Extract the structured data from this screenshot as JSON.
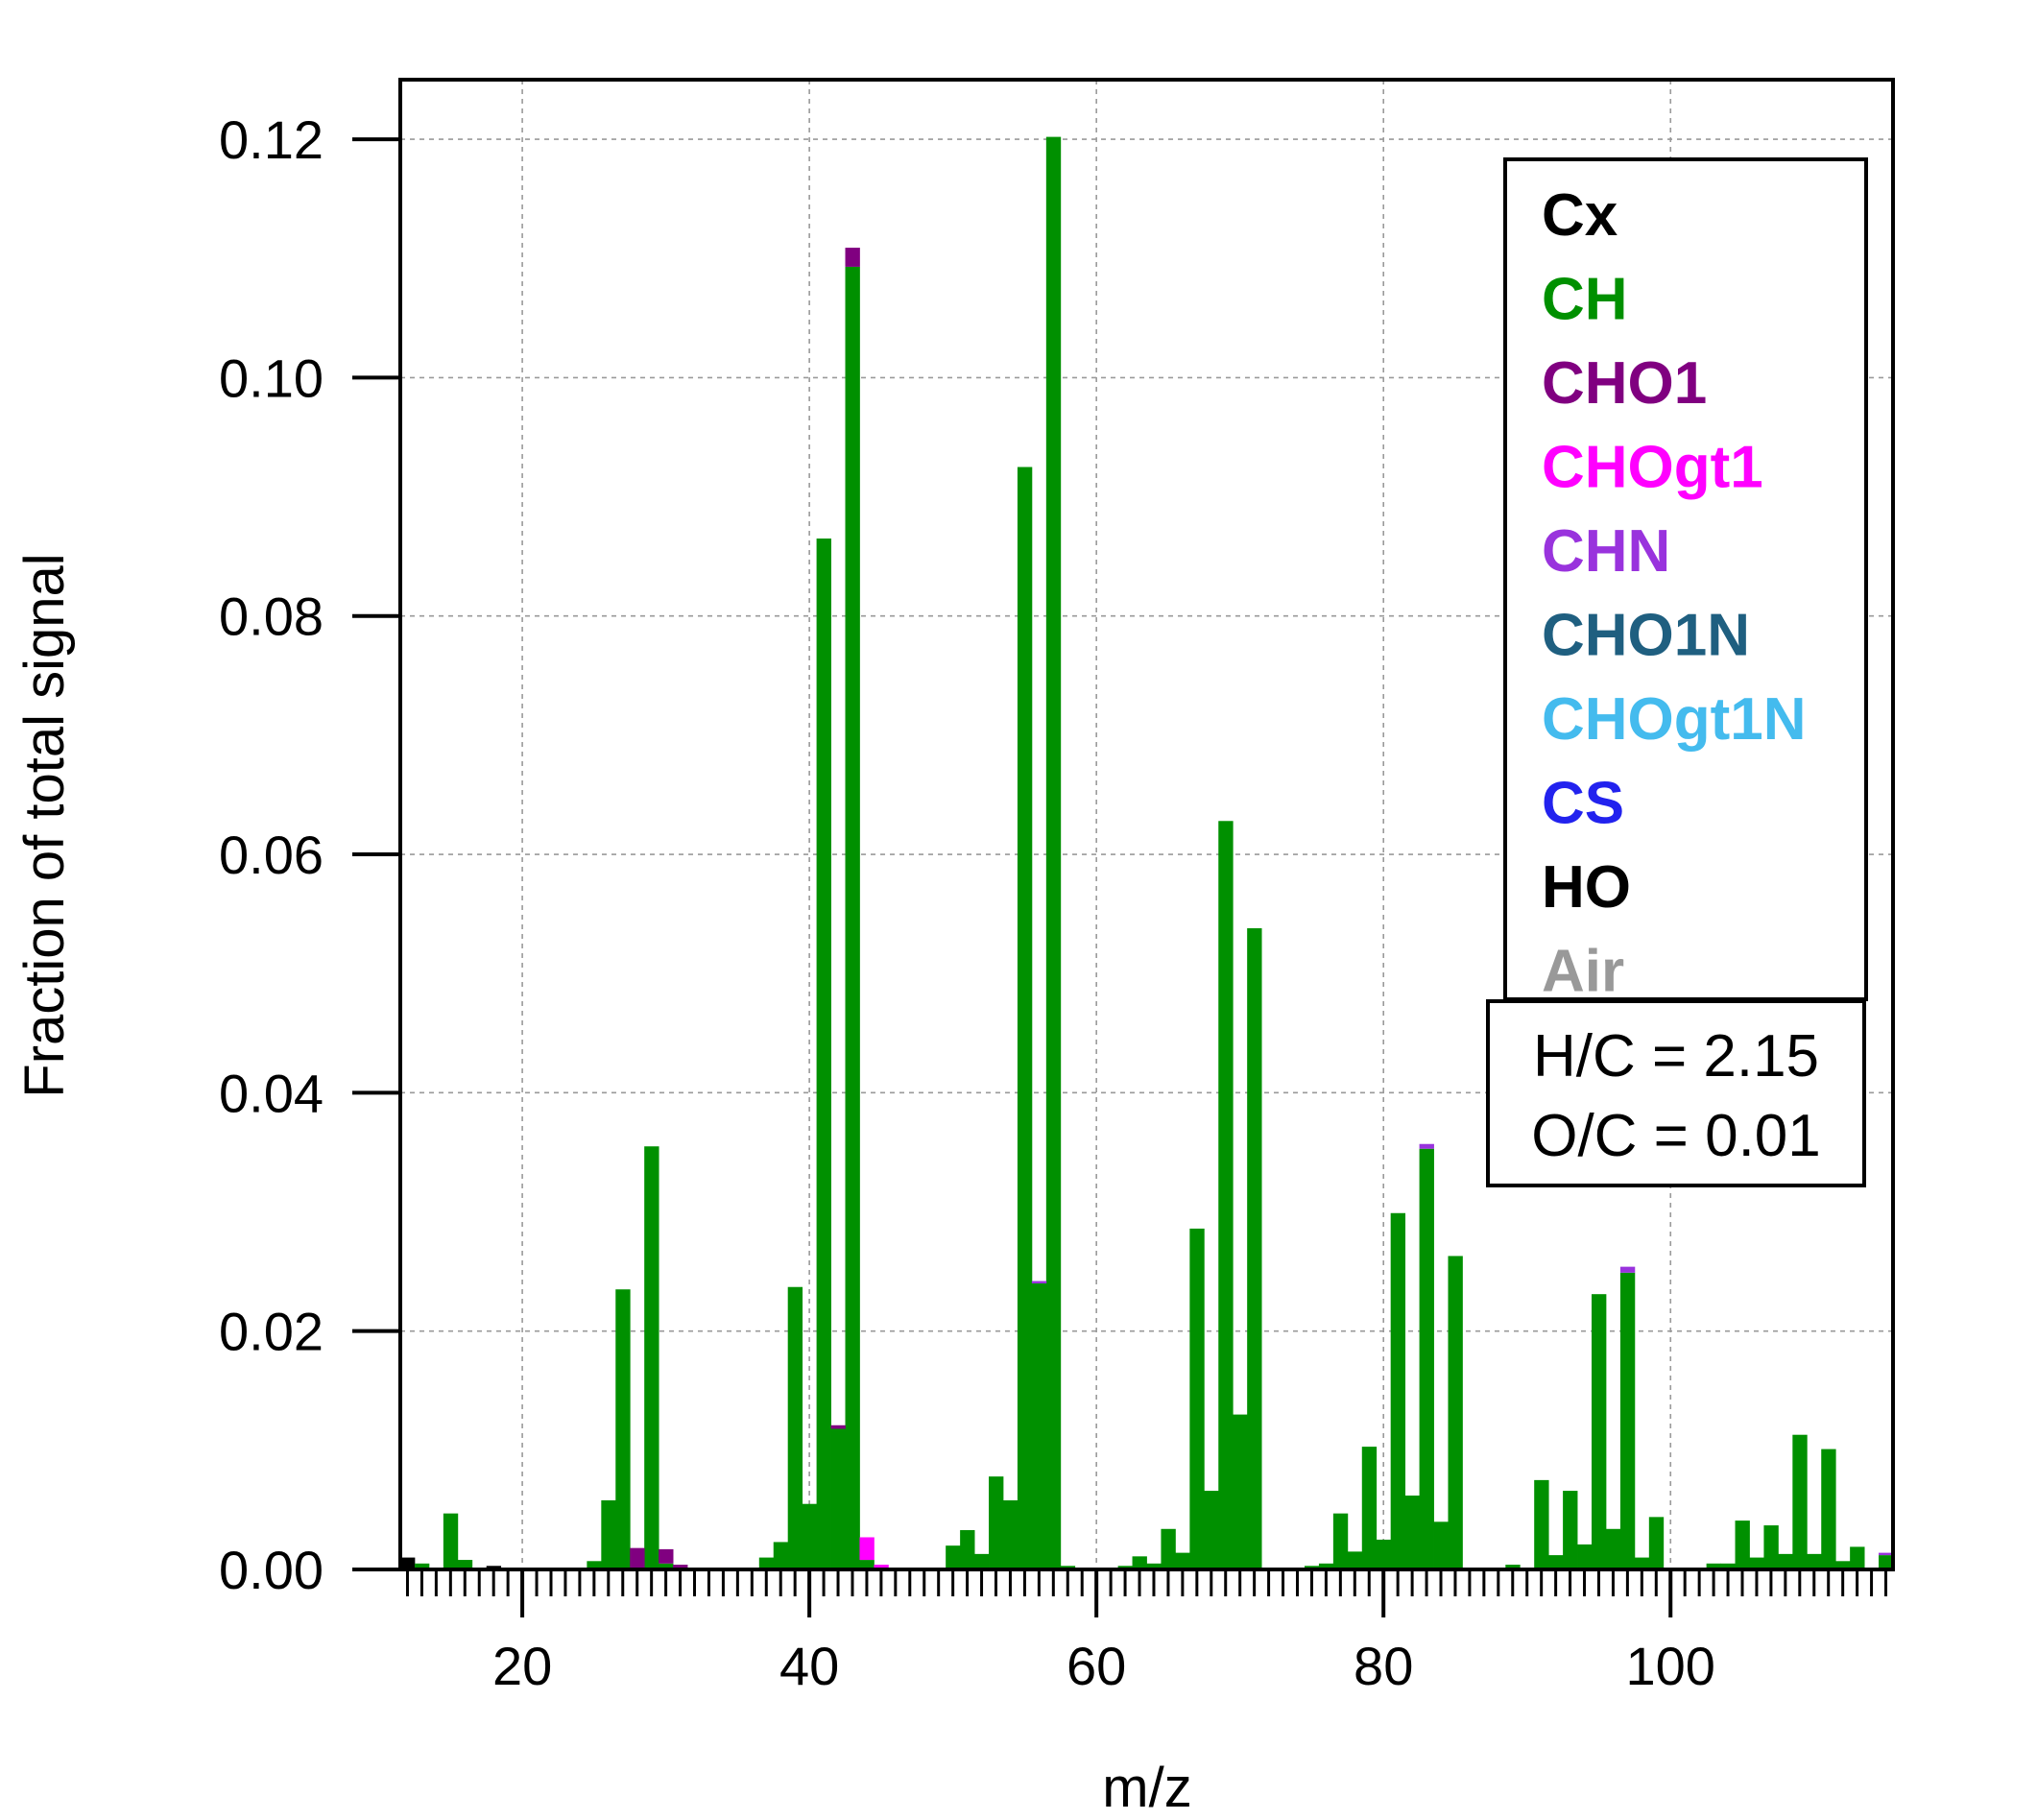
{
  "chart_data": {
    "type": "bar",
    "stacked": true,
    "xlabel": "m/z",
    "ylabel": "Fraction of total signal",
    "xlim": [
      12,
      115
    ],
    "ylim": [
      0,
      0.125
    ],
    "xticks": [
      20,
      40,
      60,
      80,
      100
    ],
    "yticks": [
      0.0,
      0.02,
      0.04,
      0.06,
      0.08,
      0.1,
      0.12
    ],
    "ytick_labels": [
      "0.00",
      "0.02",
      "0.04",
      "0.06",
      "0.08",
      "0.10",
      "0.12"
    ],
    "grid": true,
    "legend": [
      {
        "name": "Cx",
        "color": "#000000"
      },
      {
        "name": "CH",
        "color": "#009000"
      },
      {
        "name": "CHO1",
        "color": "#800080"
      },
      {
        "name": "CHOgt1",
        "color": "#ff00ff"
      },
      {
        "name": "CHN",
        "color": "#9933dd"
      },
      {
        "name": "CHO1N",
        "color": "#1f5f80"
      },
      {
        "name": "CHOgt1N",
        "color": "#44bbee"
      },
      {
        "name": "CS",
        "color": "#2222ee"
      },
      {
        "name": "HO",
        "color": "#000000"
      },
      {
        "name": "Air",
        "color": "#999999"
      }
    ],
    "annotation": {
      "hc": "H/C = 2.15",
      "oc": "O/C = 0.01"
    },
    "series": [
      {
        "name": "Cx",
        "color": "#000000",
        "points": [
          [
            12,
            0.001
          ],
          [
            18,
            0.0003
          ]
        ]
      },
      {
        "name": "CH",
        "color": "#009000",
        "points": [
          [
            13,
            0.0005
          ],
          [
            15,
            0.0047
          ],
          [
            16,
            0.0008
          ],
          [
            25,
            0.0007
          ],
          [
            26,
            0.0058
          ],
          [
            27,
            0.0235
          ],
          [
            29,
            0.0355
          ],
          [
            30,
            0.0005
          ],
          [
            37,
            0.001
          ],
          [
            38,
            0.0023
          ],
          [
            39,
            0.0237
          ],
          [
            40,
            0.0055
          ],
          [
            41,
            0.0865
          ],
          [
            42,
            0.0118
          ],
          [
            43,
            0.1093
          ],
          [
            44,
            0.0008
          ],
          [
            50,
            0.002
          ],
          [
            51,
            0.0033
          ],
          [
            52,
            0.0013
          ],
          [
            53,
            0.0078
          ],
          [
            54,
            0.0058
          ],
          [
            55,
            0.0925
          ],
          [
            56,
            0.024
          ],
          [
            57,
            0.1202
          ],
          [
            58,
            0.0003
          ],
          [
            62,
            0.0003
          ],
          [
            63,
            0.0011
          ],
          [
            64,
            0.0005
          ],
          [
            65,
            0.0034
          ],
          [
            66,
            0.0014
          ],
          [
            67,
            0.0286
          ],
          [
            68,
            0.0066
          ],
          [
            69,
            0.0628
          ],
          [
            70,
            0.013
          ],
          [
            71,
            0.0538
          ],
          [
            75,
            0.0003
          ],
          [
            76,
            0.0005
          ],
          [
            77,
            0.0047
          ],
          [
            78,
            0.0015
          ],
          [
            79,
            0.0103
          ],
          [
            80,
            0.0025
          ],
          [
            81,
            0.0299
          ],
          [
            82,
            0.0062
          ],
          [
            83,
            0.0353
          ],
          [
            84,
            0.004
          ],
          [
            85,
            0.0263
          ],
          [
            89,
            0.0004
          ],
          [
            91,
            0.0075
          ],
          [
            92,
            0.0012
          ],
          [
            93,
            0.0066
          ],
          [
            94,
            0.0021
          ],
          [
            95,
            0.0231
          ],
          [
            96,
            0.0034
          ],
          [
            97,
            0.0249
          ],
          [
            98,
            0.001
          ],
          [
            99,
            0.0044
          ],
          [
            103,
            0.0005
          ],
          [
            104,
            0.0005
          ],
          [
            105,
            0.0041
          ],
          [
            106,
            0.001
          ],
          [
            107,
            0.0037
          ],
          [
            108,
            0.0013
          ],
          [
            109,
            0.0113
          ],
          [
            110,
            0.0013
          ],
          [
            111,
            0.0101
          ],
          [
            112,
            0.0007
          ],
          [
            113,
            0.0019
          ],
          [
            115,
            0.0012
          ]
        ]
      },
      {
        "name": "CHO1",
        "color": "#800080",
        "points": [
          [
            28,
            0.0018
          ],
          [
            30,
            0.0012
          ],
          [
            31,
            0.0004
          ],
          [
            42,
            0.0003
          ],
          [
            43,
            0.0016
          ]
        ]
      },
      {
        "name": "CHOgt1",
        "color": "#ff00ff",
        "points": [
          [
            44,
            0.0019
          ],
          [
            45,
            0.0004
          ]
        ]
      },
      {
        "name": "CHN",
        "color": "#9933dd",
        "points": [
          [
            56,
            0.0002
          ],
          [
            83,
            0.0004
          ],
          [
            97,
            0.0005
          ],
          [
            115,
            0.0002
          ]
        ]
      }
    ]
  }
}
